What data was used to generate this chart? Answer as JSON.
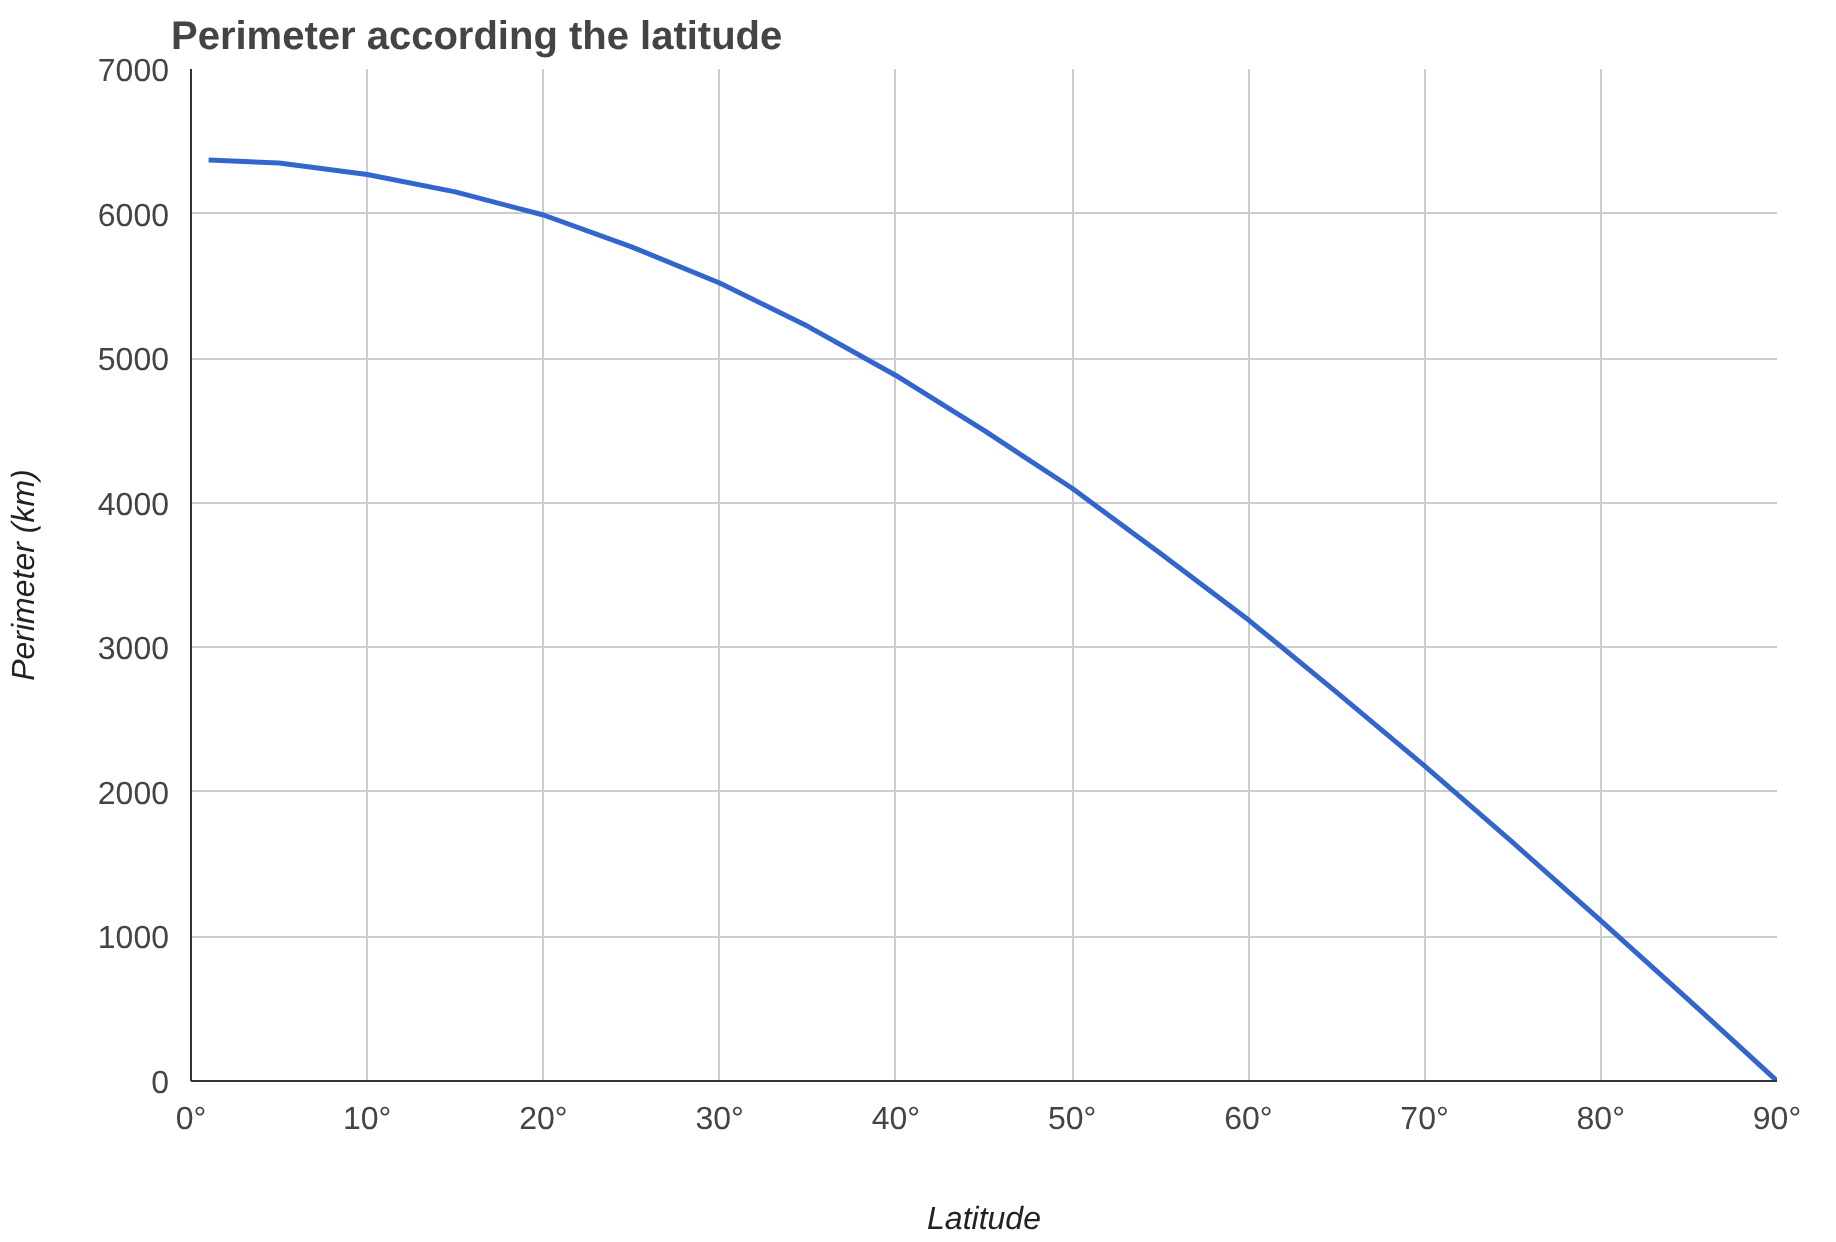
{
  "chart_data": {
    "type": "line",
    "title": "Perimeter according the latitude",
    "xlabel": "Latitude",
    "ylabel": "Perimeter (km)",
    "x": [
      1,
      5,
      10,
      15,
      20,
      25,
      30,
      35,
      40,
      45,
      50,
      55,
      60,
      65,
      70,
      75,
      80,
      85,
      90
    ],
    "series": [
      {
        "color": "#3366cc",
        "values": [
          6370,
          6350,
          6270,
          6150,
          5990,
          5770,
          5520,
          5220,
          4880,
          4500,
          4100,
          3650,
          3190,
          2690,
          2180,
          1650,
          1110,
          560,
          0
        ]
      }
    ],
    "xlim": [
      0,
      90
    ],
    "ylim": [
      0,
      7000
    ],
    "xticks": [
      {
        "value": 0,
        "label": "0°"
      },
      {
        "value": 10,
        "label": "10°"
      },
      {
        "value": 20,
        "label": "20°"
      },
      {
        "value": 30,
        "label": "30°"
      },
      {
        "value": 40,
        "label": "40°"
      },
      {
        "value": 50,
        "label": "50°"
      },
      {
        "value": 60,
        "label": "60°"
      },
      {
        "value": 70,
        "label": "70°"
      },
      {
        "value": 80,
        "label": "80°"
      },
      {
        "value": 90,
        "label": "90°"
      }
    ],
    "yticks": [
      0,
      1000,
      2000,
      3000,
      4000,
      5000,
      6000,
      7000
    ],
    "grid": true,
    "marker": "none",
    "line_style": "solid"
  }
}
